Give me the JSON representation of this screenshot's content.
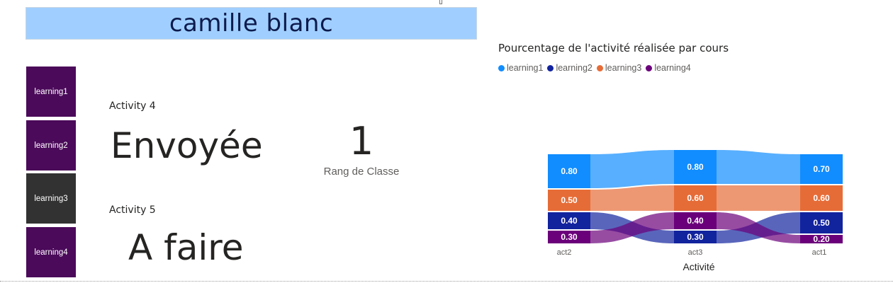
{
  "header": {
    "student_name": "camille blanc"
  },
  "courses": [
    {
      "label": "learning1",
      "selected": false
    },
    {
      "label": "learning2",
      "selected": false
    },
    {
      "label": "learning3",
      "selected": true
    },
    {
      "label": "learning4",
      "selected": false
    }
  ],
  "activities": [
    {
      "label": "Activity 4",
      "status": "Envoyée"
    },
    {
      "label": "Activity 5",
      "status": "A faire"
    }
  ],
  "rank": {
    "value": "1",
    "label": "Rang de Classe"
  },
  "colors": {
    "learning1": "#118dff",
    "learning2": "#12239e",
    "learning3": "#e66c37",
    "learning4": "#6b007b",
    "banner": "#a0cfff",
    "course_button": "#4b0a5a",
    "course_button_selected": "#323232"
  },
  "chart_data": {
    "type": "ribbon",
    "title": "Pourcentage de l'activité réalisée par cours",
    "xlabel": "Activité",
    "categories": [
      "act2",
      "act3",
      "act1"
    ],
    "series": [
      {
        "name": "learning1",
        "values": [
          0.8,
          0.8,
          0.7
        ]
      },
      {
        "name": "learning2",
        "values": [
          0.4,
          0.3,
          0.5
        ]
      },
      {
        "name": "learning3",
        "values": [
          0.5,
          0.6,
          0.6
        ]
      },
      {
        "name": "learning4",
        "values": [
          0.3,
          0.4,
          0.2
        ]
      }
    ],
    "legend_position": "top-left"
  }
}
